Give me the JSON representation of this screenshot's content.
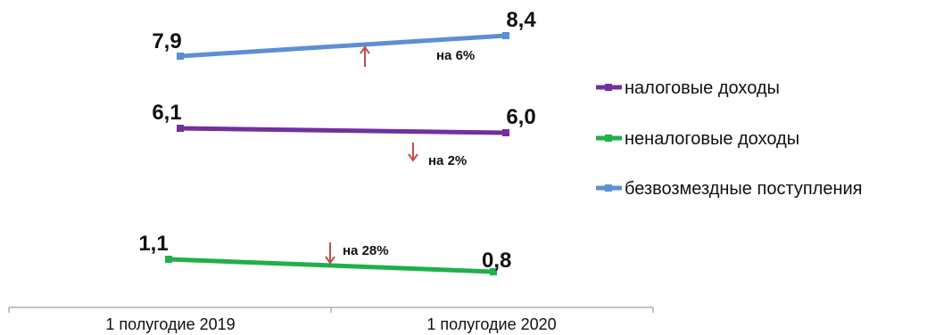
{
  "chart_data": {
    "type": "line",
    "categories": [
      "1 полугодие 2019",
      "1 полугодие 2020"
    ],
    "series": [
      {
        "name": "налоговые доходы",
        "values": [
          6.1,
          6.0
        ],
        "color": "#7030a0",
        "change_label": "на 2%",
        "direction": "down"
      },
      {
        "name": "неналоговые доходы",
        "values": [
          1.1,
          0.8
        ],
        "color": "#1fb04a",
        "change_label": "на 28%",
        "direction": "down"
      },
      {
        "name": "безвозмездные поступления",
        "values": [
          7.9,
          8.4
        ],
        "color": "#5b8fd6",
        "change_label": "на 6%",
        "direction": "up"
      }
    ],
    "value_labels": [
      [
        "6,1",
        "6,0"
      ],
      [
        "1,1",
        "0,8"
      ],
      [
        "7,9",
        "8,4"
      ]
    ],
    "arrow_color": "#c0504d",
    "legend_position": "right",
    "grid": false
  }
}
